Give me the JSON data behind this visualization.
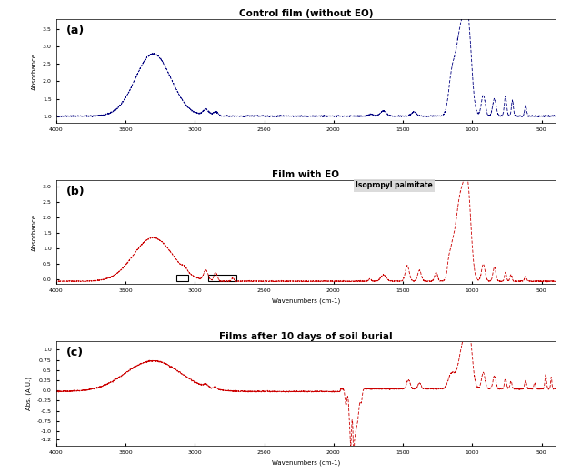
{
  "title_a": "Control film (without EO)",
  "title_b": "Film with EO",
  "title_c": "Films after 10 days of soil burial",
  "label_a": "(a)",
  "label_b": "(b)",
  "label_c": "(c)",
  "color_a": "#000080",
  "color_b": "#CC0000",
  "color_c": "#CC0000",
  "xlabel": "Wavenumbers (cm-1)",
  "ylabel_a": "Absorbance",
  "ylabel_b": "Absorbance",
  "ylabel_c": "Abs. (A.U.)",
  "annotation_b1": "Isopropyl palmitate",
  "yticks_a": [
    1.0,
    1.5,
    2.0,
    2.5,
    3.0,
    3.5
  ],
  "ylabels_a": [
    "1.0",
    "1.5",
    "2.0",
    "2.5",
    "3.0",
    "3.5"
  ],
  "ylim_a": [
    0.8,
    3.8
  ],
  "yticks_b": [
    -0.0,
    0.5,
    1.0,
    1.5,
    2.0,
    2.5,
    3.0
  ],
  "ylabels_b": [
    "0.0",
    "0.5",
    "1.0",
    "1.5",
    "2.0",
    "2.5",
    "3.0"
  ],
  "ylim_b": [
    -0.15,
    3.2
  ],
  "yticks_c": [
    -1.2,
    -1.0,
    -0.75,
    -0.5,
    -0.25,
    0.0,
    0.25,
    0.5,
    0.75,
    1.0
  ],
  "ylabels_c": [
    "-1.2",
    "-1.0",
    "-0.75",
    "-0.5",
    "-0.25",
    "0.0",
    "0.25",
    "0.5",
    "0.75",
    "1.0"
  ],
  "ylim_c": [
    -1.35,
    1.2
  ],
  "xticks": [
    4000,
    3500,
    3000,
    2500,
    2000,
    1500,
    1000,
    500
  ],
  "xlabels": [
    "4000",
    "3500",
    "3000",
    "2500",
    "2000",
    "1500",
    "1000",
    "500"
  ]
}
